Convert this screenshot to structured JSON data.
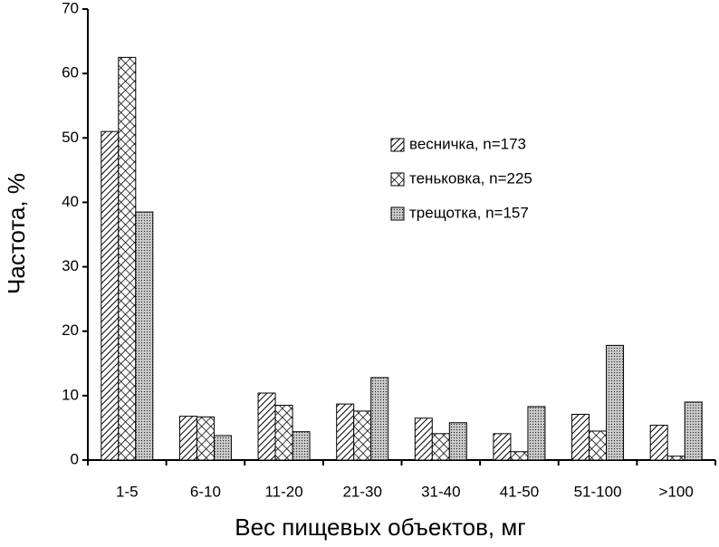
{
  "chart_data": {
    "type": "bar",
    "xlabel": "Вес пищевых объектов, мг",
    "ylabel": "Частота, %",
    "categories": [
      "1-5",
      "6-10",
      "11-20",
      "21-30",
      "31-40",
      "41-50",
      "51-100",
      ">100"
    ],
    "series": [
      {
        "name": "весничка, n=173",
        "color": "#000000",
        "hatch": "diagonal",
        "values": [
          51,
          6.8,
          10.4,
          8.7,
          6.5,
          4.1,
          7.1,
          5.4
        ]
      },
      {
        "name": "теньковка, n=225",
        "color": "#000000",
        "hatch": "cross",
        "values": [
          62.5,
          6.7,
          8.5,
          7.6,
          4.1,
          1.3,
          4.5,
          0.6
        ]
      },
      {
        "name": "трещотка, n=157",
        "color": "#000000",
        "hatch": "dots",
        "values": [
          38.5,
          3.8,
          4.4,
          12.8,
          5.8,
          8.3,
          17.8,
          9.0
        ]
      }
    ],
    "ylim": [
      0,
      70
    ],
    "yticks": [
      0,
      10,
      20,
      30,
      40,
      50,
      60,
      70
    ],
    "grid": false,
    "legend": "upper right"
  }
}
